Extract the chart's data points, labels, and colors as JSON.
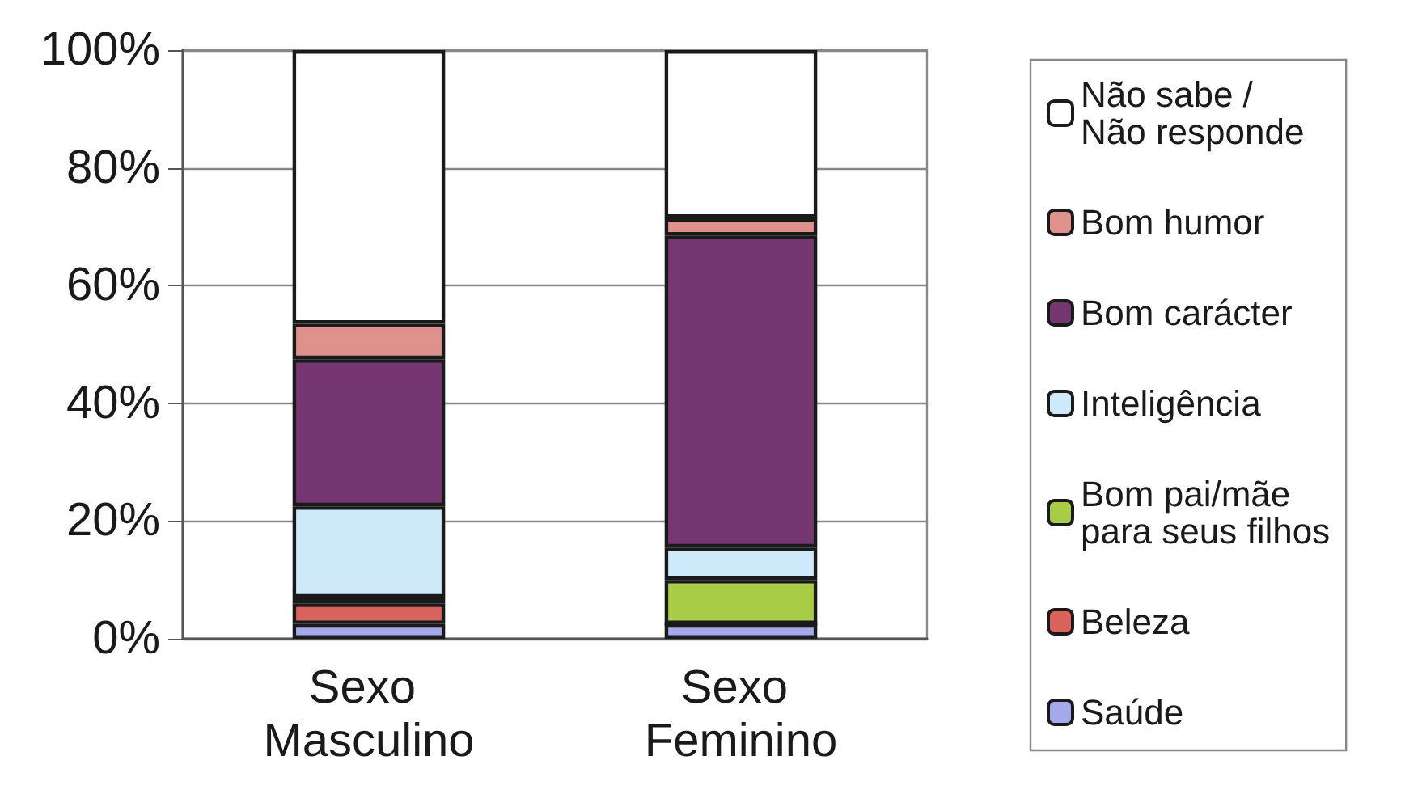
{
  "chart_data": {
    "type": "bar",
    "stacked": true,
    "categories": [
      "Sexo Masculino",
      "Sexo Feminino"
    ],
    "series": [
      {
        "name": "Saúde",
        "color": "#a3a9ea",
        "values": [
          2.5,
          2.5
        ]
      },
      {
        "name": "Beleza",
        "color": "#d9625c",
        "values": [
          3.5,
          0
        ]
      },
      {
        "name": "Bom pai/mãe\npara seus filhos",
        "color": "#a9cc47",
        "values": [
          1,
          7.5
        ]
      },
      {
        "name": "Inteligência",
        "color": "#cde9fa",
        "values": [
          15.5,
          5.5
        ]
      },
      {
        "name": "Bom carácter",
        "color": "#763672",
        "values": [
          25,
          53
        ]
      },
      {
        "name": "Bom humor",
        "color": "#df928c",
        "values": [
          6,
          3
        ]
      },
      {
        "name": "Não sabe /\nNão responde",
        "color": "#ffffff",
        "values": [
          46.5,
          28.5
        ]
      }
    ],
    "ylim": [
      0,
      100
    ],
    "yticks": [
      {
        "value": 0,
        "label": "0%"
      },
      {
        "value": 20,
        "label": "20%"
      },
      {
        "value": 40,
        "label": "40%"
      },
      {
        "value": 60,
        "label": "60%"
      },
      {
        "value": 80,
        "label": "80%"
      },
      {
        "value": 100,
        "label": "100%"
      }
    ],
    "grid": "y",
    "legend": "right"
  }
}
